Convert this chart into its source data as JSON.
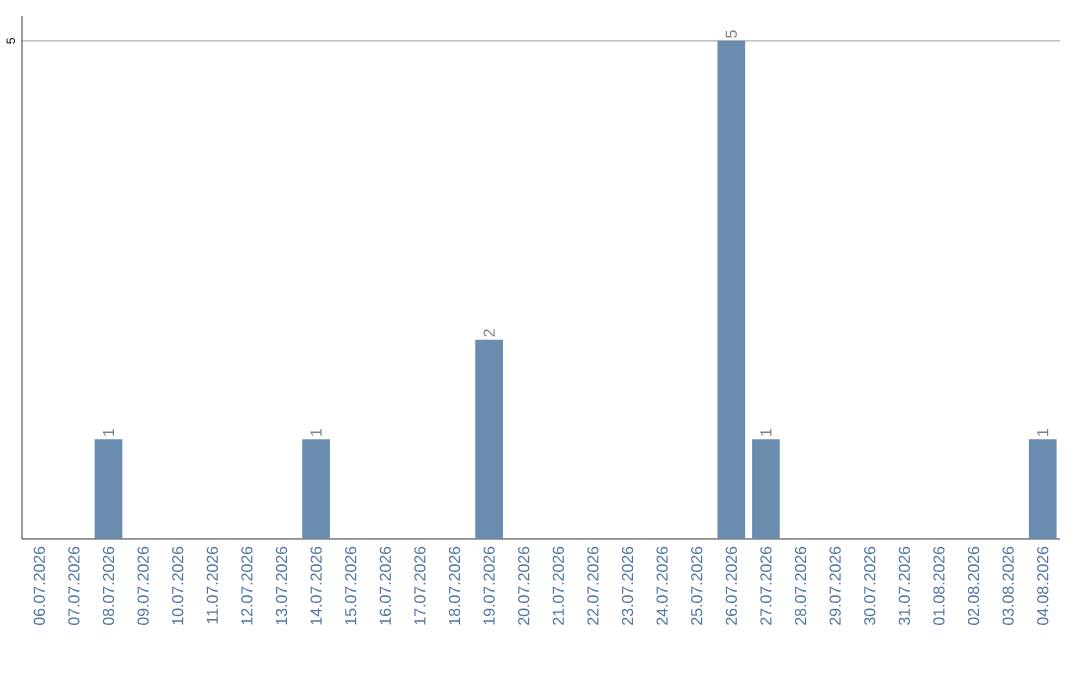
{
  "chart_data": {
    "type": "bar",
    "categories": [
      "06.07.2026",
      "07.07.2026",
      "08.07.2026",
      "09.07.2026",
      "10.07.2026",
      "11.07.2026",
      "12.07.2026",
      "13.07.2026",
      "14.07.2026",
      "15.07.2026",
      "16.07.2026",
      "17.07.2026",
      "18.07.2026",
      "19.07.2026",
      "20.07.2026",
      "21.07.2026",
      "22.07.2026",
      "23.07.2026",
      "24.07.2026",
      "25.07.2026",
      "26.07.2026",
      "27.07.2026",
      "28.07.2026",
      "29.07.2026",
      "30.07.2026",
      "31.07.2026",
      "01.08.2026",
      "02.08.2026",
      "03.08.2026",
      "04.08.2026"
    ],
    "values": [
      0,
      0,
      1,
      0,
      0,
      0,
      0,
      0,
      1,
      0,
      0,
      0,
      0,
      2,
      0,
      0,
      0,
      0,
      0,
      0,
      5,
      1,
      0,
      0,
      0,
      0,
      0,
      0,
      0,
      1
    ],
    "value_labels": [
      null,
      null,
      "1",
      null,
      null,
      null,
      null,
      null,
      "1",
      null,
      null,
      null,
      null,
      "2",
      null,
      null,
      null,
      null,
      null,
      null,
      "5",
      "1",
      null,
      null,
      null,
      null,
      null,
      null,
      null,
      "1"
    ],
    "color": "#6a8caf",
    "ylim": [
      0,
      5.25
    ],
    "yticks": [
      5
    ],
    "grid": "y"
  }
}
